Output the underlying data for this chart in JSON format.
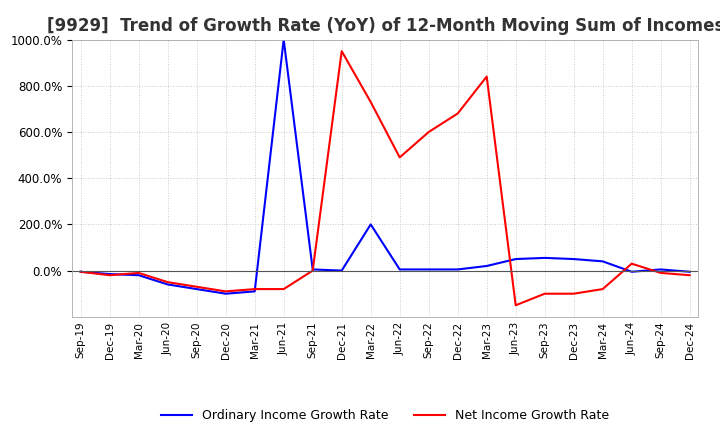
{
  "title": "[9929]  Trend of Growth Rate (YoY) of 12-Month Moving Sum of Incomes",
  "title_fontsize": 12,
  "background_color": "#ffffff",
  "grid_color": "#cccccc",
  "ordinary_color": "#0000ff",
  "net_color": "#ff0000",
  "legend_ordinary": "Ordinary Income Growth Rate",
  "legend_net": "Net Income Growth Rate",
  "x_labels": [
    "Sep-19",
    "Dec-19",
    "Mar-20",
    "Jun-20",
    "Sep-20",
    "Dec-20",
    "Mar-21",
    "Jun-21",
    "Sep-21",
    "Dec-21",
    "Mar-22",
    "Jun-22",
    "Sep-22",
    "Dec-22",
    "Mar-23",
    "Jun-23",
    "Sep-23",
    "Dec-23",
    "Mar-24",
    "Jun-24",
    "Sep-24",
    "Dec-24"
  ],
  "ordinary_data": [
    -5,
    -15,
    -20,
    -60,
    -80,
    -100,
    -90,
    1000,
    5,
    0,
    200,
    5,
    5,
    5,
    20,
    50,
    55,
    50,
    40,
    -5,
    5,
    -5
  ],
  "net_data": [
    -5,
    -20,
    -10,
    -50,
    -70,
    -90,
    -80,
    -80,
    0,
    950,
    730,
    490,
    600,
    680,
    840,
    -150,
    -100,
    -100,
    -80,
    30,
    -10,
    -20
  ],
  "ylim_min": -200,
  "ylim_max": 1000,
  "yticks": [
    0,
    200,
    400,
    600,
    800,
    1000
  ]
}
